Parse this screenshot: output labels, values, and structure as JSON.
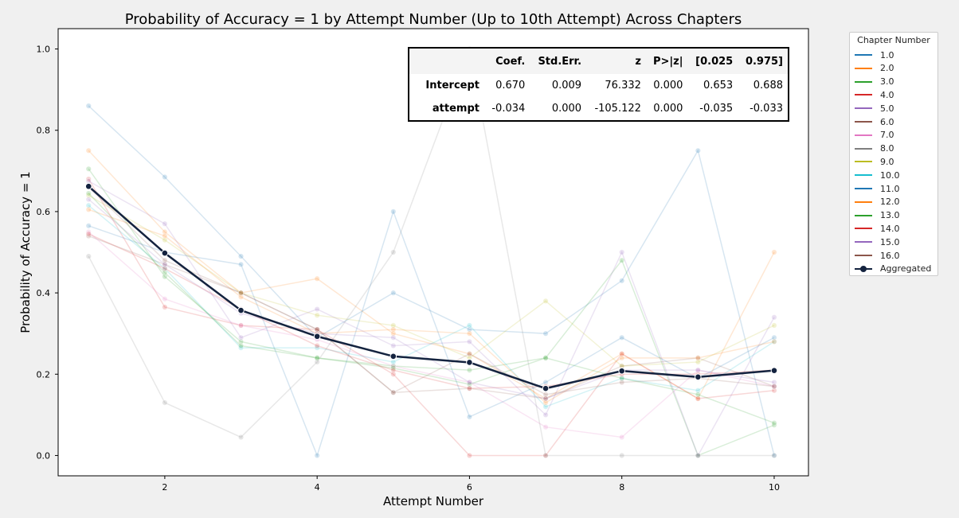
{
  "chart_data": {
    "type": "line",
    "title": "Probability of Accuracy = 1 by Attempt Number (Up to 10th Attempt) Across Chapters",
    "xlabel": "Attempt Number",
    "ylabel": "Probability of Accuracy = 1",
    "xlim": [
      0.6,
      10.45
    ],
    "ylim": [
      -0.05,
      1.05
    ],
    "xticks": [
      2,
      4,
      6,
      8,
      10
    ],
    "yticks": [
      0.0,
      0.2,
      0.4,
      0.6,
      0.8,
      1.0
    ],
    "x": [
      1,
      2,
      3,
      4,
      5,
      6,
      7,
      8,
      9,
      10
    ],
    "legend_title": "Chapter Number",
    "legend_position": "outside-right",
    "series": [
      {
        "name": "1.0",
        "color": "#1f77b4",
        "values": [
          0.86,
          0.685,
          0.49,
          0.29,
          0.4,
          0.31,
          0.3,
          0.43,
          0.75,
          0.0
        ]
      },
      {
        "name": "2.0",
        "color": "#ff7f0e",
        "values": [
          0.75,
          0.55,
          0.4,
          0.435,
          0.3,
          0.25,
          0.14,
          0.25,
          0.14,
          0.5
        ]
      },
      {
        "name": "3.0",
        "color": "#2ca02c",
        "values": [
          0.705,
          0.44,
          0.28,
          0.24,
          0.22,
          0.21,
          0.24,
          0.48,
          0.0,
          0.075
        ]
      },
      {
        "name": "4.0",
        "color": "#d62728",
        "values": [
          0.68,
          0.365,
          0.32,
          0.31,
          0.2,
          0.0,
          0.0,
          0.25,
          0.14,
          0.16
        ]
      },
      {
        "name": "5.0",
        "color": "#9467bd",
        "values": [
          0.675,
          0.57,
          0.29,
          0.36,
          0.27,
          0.28,
          0.1,
          0.5,
          0.0,
          0.34
        ]
      },
      {
        "name": "6.0",
        "color": "#8c564b",
        "values": [
          0.54,
          0.47,
          0.4,
          0.31,
          0.155,
          0.165,
          0.14,
          0.22,
          0.24,
          0.17
        ]
      },
      {
        "name": "7.0",
        "color": "#e377c2",
        "values": [
          0.55,
          0.385,
          0.32,
          0.285,
          0.22,
          0.18,
          0.07,
          0.045,
          0.21,
          0.17
        ]
      },
      {
        "name": "8.0",
        "color": "#7f7f7f",
        "values": [
          0.49,
          0.13,
          0.045,
          0.23,
          0.5,
          1.0,
          0.0,
          0.0,
          0.0,
          0.0
        ]
      },
      {
        "name": "9.0",
        "color": "#bcbd22",
        "values": [
          0.64,
          0.53,
          0.4,
          0.345,
          0.32,
          0.24,
          0.38,
          0.22,
          0.23,
          0.32
        ]
      },
      {
        "name": "10.0",
        "color": "#17becf",
        "values": [
          0.615,
          0.46,
          0.265,
          0.265,
          0.23,
          0.32,
          0.12,
          0.19,
          0.16,
          0.28
        ]
      },
      {
        "name": "11.0",
        "color": "#1f77b4",
        "values": [
          0.565,
          0.5,
          0.47,
          0.0,
          0.6,
          0.095,
          0.18,
          0.29,
          0.19,
          0.29
        ]
      },
      {
        "name": "12.0",
        "color": "#ff7f0e",
        "values": [
          0.605,
          0.54,
          0.39,
          0.3,
          0.31,
          0.3,
          0.13,
          0.24,
          0.24,
          0.28
        ]
      },
      {
        "name": "13.0",
        "color": "#2ca02c",
        "values": [
          0.645,
          0.45,
          0.27,
          0.24,
          0.215,
          0.175,
          0.24,
          0.19,
          0.15,
          0.08
        ]
      },
      {
        "name": "14.0",
        "color": "#d62728",
        "values": [
          0.545,
          0.46,
          0.36,
          0.27,
          0.21,
          0.165,
          0.17,
          0.2,
          0.2,
          0.21
        ]
      },
      {
        "name": "15.0",
        "color": "#9467bd",
        "values": [
          0.63,
          0.47,
          0.35,
          0.3,
          0.29,
          0.18,
          0.14,
          0.21,
          0.21,
          0.18
        ]
      },
      {
        "name": "16.0",
        "color": "#8c564b",
        "values": [
          0.66,
          0.48,
          0.4,
          0.31,
          0.155,
          0.25,
          0.15,
          0.18,
          0.19,
          0.17
        ]
      }
    ],
    "aggregated": {
      "name": "Aggregated",
      "color": "#14233f",
      "values": [
        0.662,
        0.498,
        0.357,
        0.293,
        0.244,
        0.229,
        0.165,
        0.208,
        0.193,
        0.209
      ]
    },
    "regression_table": {
      "headers": [
        "",
        "Coef.",
        "Std.Err.",
        "z",
        "P>|z|",
        "[0.025",
        "0.975]"
      ],
      "rows": [
        [
          "Intercept",
          "0.670",
          "0.009",
          "76.332",
          "0.000",
          "0.653",
          "0.688"
        ],
        [
          "attempt",
          "-0.034",
          "0.000",
          "-105.122",
          "0.000",
          "-0.035",
          "-0.033"
        ]
      ]
    }
  }
}
